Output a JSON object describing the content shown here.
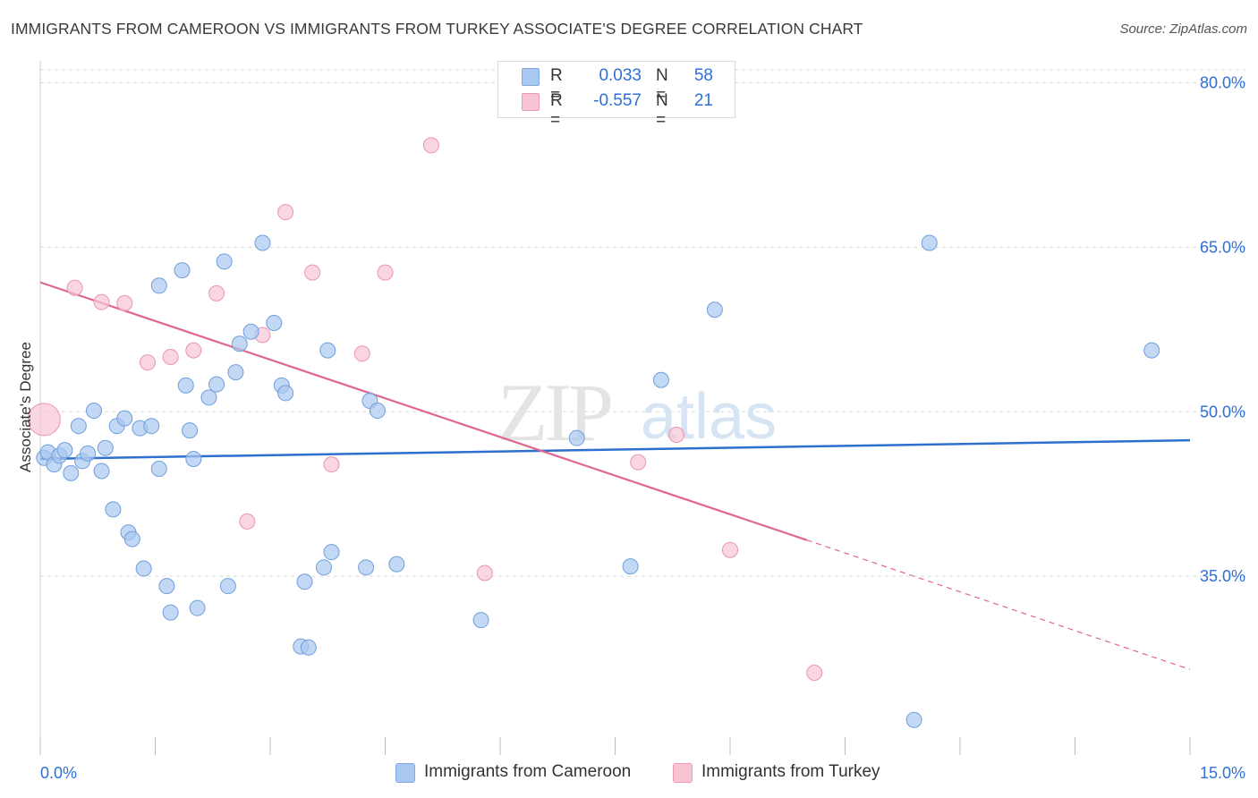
{
  "title": "IMMIGRANTS FROM CAMEROON VS IMMIGRANTS FROM TURKEY ASSOCIATE'S DEGREE CORRELATION CHART",
  "source": "Source: ZipAtlas.com",
  "watermark": {
    "zip": "ZIP",
    "atlas": "atlas"
  },
  "legend": {
    "rows": [
      {
        "r_label": "R =",
        "r_value": "0.033",
        "n_label": "N =",
        "n_value": "58",
        "color": "#a9c8f0",
        "border": "#7fa9e0"
      },
      {
        "r_label": "R =",
        "r_value": "-0.557",
        "n_label": "N =",
        "n_value": "21",
        "color": "#f7c4d3",
        "border": "#ee9ab3"
      }
    ]
  },
  "bottom_legend": {
    "cameroon": "Immigrants from Cameroon",
    "turkey": "Immigrants from Turkey"
  },
  "colors": {
    "cameroon_fill": "#a9c8f0",
    "cameroon_stroke": "#6f9fdc",
    "turkey_fill": "#f7c4d3",
    "turkey_stroke": "#ec94b0",
    "cameroon_line": "#2f6fcf",
    "turkey_line": "#e0668f",
    "axis_text": "#2f6fd6",
    "grid": "#d9d9d9"
  },
  "chart_data": {
    "type": "scatter",
    "title": "IMMIGRANTS FROM CAMEROON VS IMMIGRANTS FROM TURKEY ASSOCIATE'S DEGREE CORRELATION CHART",
    "xlabel": "",
    "ylabel": "Associate's Degree",
    "xlim": [
      0,
      15
    ],
    "ylim": [
      20,
      82
    ],
    "x_tick_labels": [
      "0.0%",
      "15.0%"
    ],
    "y_ticks": [
      35,
      50,
      65,
      80
    ],
    "y_tick_labels": [
      "35.0%",
      "50.0%",
      "65.0%",
      "80.0%"
    ],
    "grid": true,
    "legend_position": "top-center",
    "series": [
      {
        "name": "Immigrants from Cameroon",
        "points": [
          [
            0.05,
            45.8
          ],
          [
            0.1,
            46.3
          ],
          [
            0.18,
            45.2
          ],
          [
            0.25,
            46.0
          ],
          [
            0.32,
            46.5
          ],
          [
            0.4,
            44.4
          ],
          [
            0.5,
            48.7
          ],
          [
            0.55,
            45.5
          ],
          [
            0.62,
            46.2
          ],
          [
            0.7,
            50.1
          ],
          [
            0.8,
            44.6
          ],
          [
            0.85,
            46.7
          ],
          [
            0.95,
            41.1
          ],
          [
            1.0,
            48.7
          ],
          [
            1.1,
            49.4
          ],
          [
            1.15,
            39.0
          ],
          [
            1.2,
            38.4
          ],
          [
            1.3,
            48.5
          ],
          [
            1.35,
            35.7
          ],
          [
            1.45,
            48.7
          ],
          [
            1.55,
            61.5
          ],
          [
            1.55,
            44.8
          ],
          [
            1.65,
            34.1
          ],
          [
            1.7,
            31.7
          ],
          [
            1.85,
            62.9
          ],
          [
            1.9,
            52.4
          ],
          [
            1.95,
            48.3
          ],
          [
            2.0,
            45.7
          ],
          [
            2.05,
            32.1
          ],
          [
            2.2,
            51.3
          ],
          [
            2.3,
            52.5
          ],
          [
            2.4,
            63.7
          ],
          [
            2.45,
            34.1
          ],
          [
            2.55,
            53.6
          ],
          [
            2.6,
            56.2
          ],
          [
            2.75,
            57.3
          ],
          [
            2.9,
            65.4
          ],
          [
            3.05,
            58.1
          ],
          [
            3.15,
            52.4
          ],
          [
            3.2,
            51.7
          ],
          [
            3.4,
            28.6
          ],
          [
            3.5,
            28.5
          ],
          [
            3.45,
            34.5
          ],
          [
            3.7,
            35.8
          ],
          [
            3.75,
            55.6
          ],
          [
            3.8,
            37.2
          ],
          [
            4.25,
            35.8
          ],
          [
            4.3,
            51.0
          ],
          [
            4.4,
            50.1
          ],
          [
            4.65,
            36.1
          ],
          [
            5.75,
            31.0
          ],
          [
            7.0,
            47.6
          ],
          [
            7.7,
            35.9
          ],
          [
            8.1,
            52.9
          ],
          [
            8.8,
            59.3
          ],
          [
            11.6,
            65.4
          ],
          [
            14.5,
            55.6
          ],
          [
            11.4,
            21.9
          ]
        ]
      },
      {
        "name": "Immigrants from Turkey",
        "points": [
          [
            0.05,
            49.3
          ],
          [
            0.45,
            61.3
          ],
          [
            0.8,
            60.0
          ],
          [
            1.1,
            59.9
          ],
          [
            1.4,
            54.5
          ],
          [
            1.7,
            55.0
          ],
          [
            2.0,
            55.6
          ],
          [
            2.3,
            60.8
          ],
          [
            2.7,
            40.0
          ],
          [
            2.9,
            57.0
          ],
          [
            3.2,
            68.2
          ],
          [
            3.55,
            62.7
          ],
          [
            3.8,
            45.2
          ],
          [
            4.2,
            55.3
          ],
          [
            4.5,
            62.7
          ],
          [
            5.1,
            74.3
          ],
          [
            5.8,
            35.3
          ],
          [
            7.8,
            45.4
          ],
          [
            8.3,
            47.9
          ],
          [
            9.0,
            37.4
          ],
          [
            10.1,
            26.2
          ]
        ]
      }
    ],
    "trend_lines": [
      {
        "series": "Immigrants from Cameroon",
        "x": [
          0,
          15
        ],
        "y": [
          45.7,
          47.4
        ]
      },
      {
        "series": "Immigrants from Turkey",
        "x": [
          0,
          10.0
        ],
        "y": [
          61.8,
          38.3
        ],
        "dashed_to": [
          15,
          26.5
        ]
      }
    ]
  }
}
